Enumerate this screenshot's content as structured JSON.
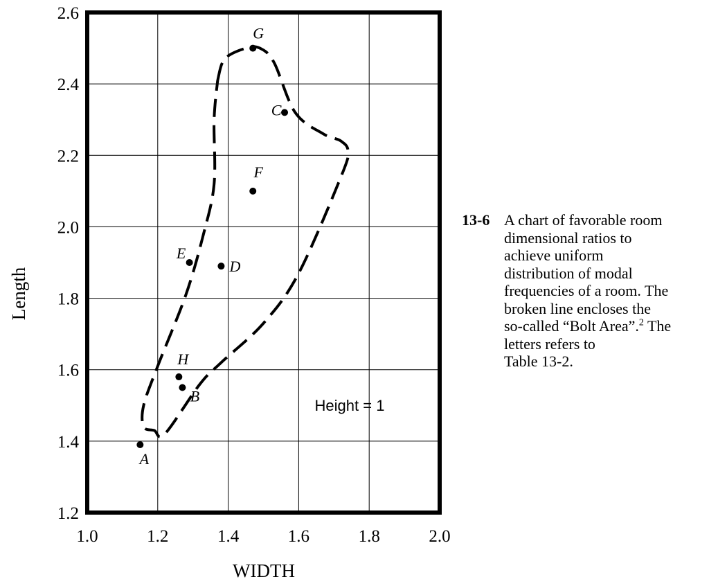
{
  "chart_data": {
    "type": "scatter",
    "xlabel": "WIDTH",
    "ylabel": "Length",
    "xlim": [
      1.0,
      2.0
    ],
    "ylim": [
      1.2,
      2.6
    ],
    "x_ticks": [
      "1.0",
      "1.2",
      "1.4",
      "1.6",
      "1.8",
      "2.0"
    ],
    "y_ticks": [
      "1.2",
      "1.4",
      "1.6",
      "1.8",
      "2.0",
      "2.2",
      "2.4",
      "2.6"
    ],
    "grid": true,
    "points": [
      {
        "label": "A",
        "x": 1.15,
        "y": 1.39
      },
      {
        "label": "B",
        "x": 1.27,
        "y": 1.55
      },
      {
        "label": "C",
        "x": 1.56,
        "y": 2.32
      },
      {
        "label": "D",
        "x": 1.38,
        "y": 1.89
      },
      {
        "label": "E",
        "x": 1.29,
        "y": 1.9
      },
      {
        "label": "F",
        "x": 1.47,
        "y": 2.1
      },
      {
        "label": "G",
        "x": 1.47,
        "y": 2.5
      },
      {
        "label": "H",
        "x": 1.26,
        "y": 1.58
      }
    ],
    "region": {
      "style": "dashed",
      "boundary": [
        [
          1.37,
          2.41
        ],
        [
          1.39,
          2.47
        ],
        [
          1.45,
          2.5
        ],
        [
          1.49,
          2.5
        ],
        [
          1.53,
          2.46
        ],
        [
          1.59,
          2.32
        ],
        [
          1.67,
          2.26
        ],
        [
          1.72,
          2.24
        ],
        [
          1.74,
          2.21
        ],
        [
          1.72,
          2.14
        ],
        [
          1.6,
          1.87
        ],
        [
          1.5,
          1.73
        ],
        [
          1.38,
          1.62
        ],
        [
          1.32,
          1.56
        ],
        [
          1.22,
          1.42
        ],
        [
          1.19,
          1.43
        ],
        [
          1.16,
          1.44
        ],
        [
          1.16,
          1.5
        ],
        [
          1.2,
          1.61
        ],
        [
          1.28,
          1.81
        ],
        [
          1.33,
          1.98
        ],
        [
          1.36,
          2.12
        ],
        [
          1.36,
          2.3
        ],
        [
          1.37,
          2.41
        ]
      ]
    },
    "annotation": "Height = 1"
  },
  "caption": {
    "number": "13-6",
    "lines": [
      "A chart of favorable room",
      "dimensional ratios to",
      "achieve uniform",
      "distribution of modal",
      "frequencies of a room. The",
      "broken line encloses the",
      "so-called “Bolt Area”.",
      "letters refers to",
      "Table 13-2."
    ],
    "footnote_ref": "2",
    "after_footnote": " The"
  }
}
